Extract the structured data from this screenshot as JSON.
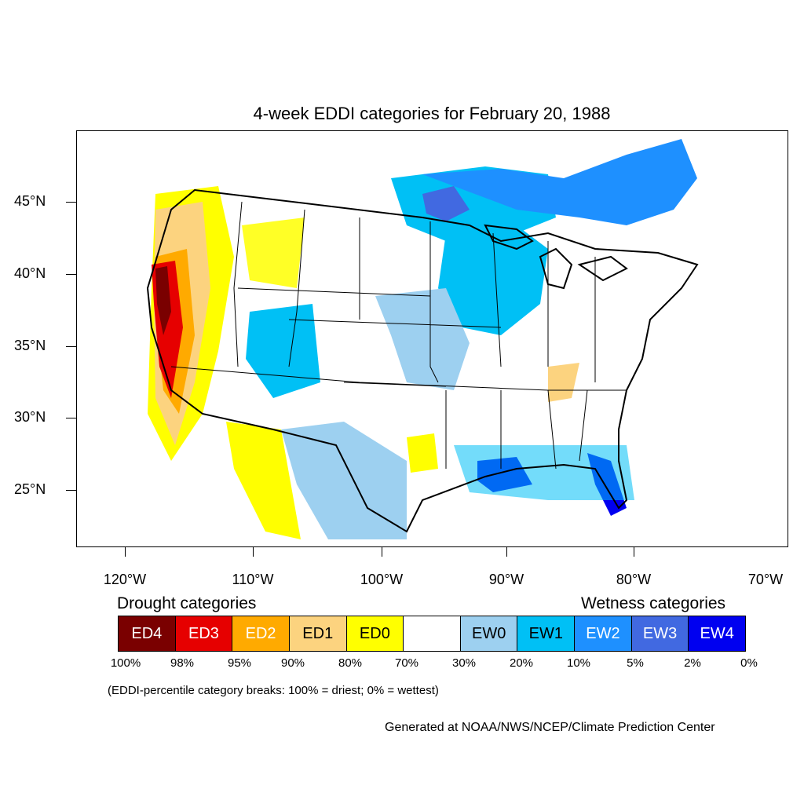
{
  "title": "4-week EDDI categories for February 20, 1988",
  "lat_labels": [
    "45°N",
    "40°N",
    "35°N",
    "30°N",
    "25°N"
  ],
  "lon_labels": [
    "120°W",
    "110°W",
    "100°W",
    "90°W",
    "80°W",
    "70°W"
  ],
  "legend": {
    "drought_heading": "Drought categories",
    "wetness_heading": "Wetness categories",
    "categories": [
      {
        "label": "ED4",
        "color": "#7a0000",
        "text_color": "#ffffff"
      },
      {
        "label": "ED3",
        "color": "#e60000",
        "text_color": "#ffffff"
      },
      {
        "label": "ED2",
        "color": "#ffaa00",
        "text_color": "#ffffff"
      },
      {
        "label": "ED1",
        "color": "#fcd37f",
        "text_color": "#000000"
      },
      {
        "label": "ED0",
        "color": "#ffff00",
        "text_color": "#000000"
      },
      {
        "label": "",
        "color": "#ffffff",
        "text_color": "#000000"
      },
      {
        "label": "EW0",
        "color": "#9dd0f0",
        "text_color": "#000000"
      },
      {
        "label": "EW1",
        "color": "#00c0f5",
        "text_color": "#000000"
      },
      {
        "label": "EW2",
        "color": "#1e90ff",
        "text_color": "#ffffff"
      },
      {
        "label": "EW3",
        "color": "#4169e1",
        "text_color": "#ffffff"
      },
      {
        "label": "EW4",
        "color": "#0000f0",
        "text_color": "#ffffff"
      }
    ],
    "percentiles": [
      "100%",
      "98%",
      "95%",
      "90%",
      "80%",
      "70%",
      "30%",
      "20%",
      "10%",
      "5%",
      "2%",
      "0%"
    ]
  },
  "note": "(EDDI-percentile category breaks: 100% = driest; 0% = wettest)",
  "credit": "Generated at NOAA/NWS/NCEP/Climate Prediction Center"
}
